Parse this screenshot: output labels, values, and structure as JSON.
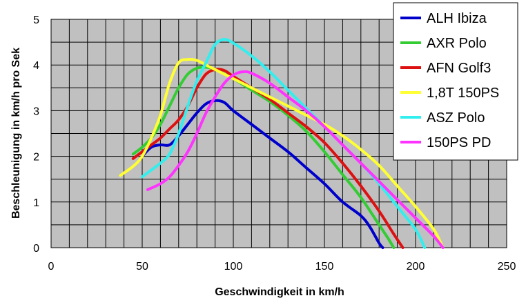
{
  "chart_data": {
    "type": "line",
    "xlabel": "Geschwindigkeit in km/h",
    "ylabel": "Beschleunigung in km/h pro Sek",
    "xlim": [
      0,
      250
    ],
    "ylim": [
      0,
      5
    ],
    "x_ticks": [
      0,
      50,
      100,
      150,
      200,
      250
    ],
    "y_ticks": [
      0,
      1,
      2,
      3,
      4,
      5
    ],
    "grid": true,
    "plot_background": "#c0c0c0",
    "legend_position": "top-right",
    "series": [
      {
        "name": "ALH Ibiza",
        "color": "#0000cc",
        "points": [
          [
            50,
            2.0
          ],
          [
            55,
            2.2
          ],
          [
            60,
            2.25
          ],
          [
            65,
            2.25
          ],
          [
            70,
            2.45
          ],
          [
            75,
            2.7
          ],
          [
            80,
            2.95
          ],
          [
            85,
            3.15
          ],
          [
            90,
            3.22
          ],
          [
            95,
            3.18
          ],
          [
            100,
            3.0
          ],
          [
            110,
            2.7
          ],
          [
            120,
            2.4
          ],
          [
            130,
            2.1
          ],
          [
            140,
            1.75
          ],
          [
            150,
            1.4
          ],
          [
            160,
            1.0
          ],
          [
            170,
            0.7
          ],
          [
            175,
            0.45
          ],
          [
            180,
            0.1
          ],
          [
            182,
            0.0
          ]
        ]
      },
      {
        "name": "AXR Polo",
        "color": "#33cc33",
        "points": [
          [
            45,
            2.05
          ],
          [
            50,
            2.2
          ],
          [
            55,
            2.4
          ],
          [
            60,
            2.7
          ],
          [
            65,
            3.1
          ],
          [
            70,
            3.5
          ],
          [
            75,
            3.8
          ],
          [
            80,
            3.93
          ],
          [
            85,
            3.95
          ],
          [
            90,
            3.9
          ],
          [
            100,
            3.7
          ],
          [
            110,
            3.45
          ],
          [
            120,
            3.2
          ],
          [
            130,
            2.9
          ],
          [
            140,
            2.55
          ],
          [
            150,
            2.1
          ],
          [
            160,
            1.6
          ],
          [
            170,
            1.1
          ],
          [
            180,
            0.5
          ],
          [
            185,
            0.2
          ],
          [
            188,
            0.0
          ]
        ]
      },
      {
        "name": "AFN Golf3",
        "color": "#dd1111",
        "points": [
          [
            45,
            1.95
          ],
          [
            50,
            2.1
          ],
          [
            55,
            2.25
          ],
          [
            60,
            2.4
          ],
          [
            65,
            2.6
          ],
          [
            70,
            2.8
          ],
          [
            75,
            3.1
          ],
          [
            80,
            3.5
          ],
          [
            85,
            3.8
          ],
          [
            90,
            3.9
          ],
          [
            95,
            3.88
          ],
          [
            100,
            3.75
          ],
          [
            110,
            3.5
          ],
          [
            120,
            3.25
          ],
          [
            130,
            2.95
          ],
          [
            140,
            2.65
          ],
          [
            150,
            2.3
          ],
          [
            160,
            1.85
          ],
          [
            170,
            1.35
          ],
          [
            180,
            0.8
          ],
          [
            188,
            0.3
          ],
          [
            193,
            0.0
          ]
        ]
      },
      {
        "name": "1,8T 150PS",
        "color": "#ffff33",
        "points": [
          [
            38,
            1.58
          ],
          [
            45,
            1.78
          ],
          [
            50,
            2.0
          ],
          [
            55,
            2.4
          ],
          [
            60,
            2.9
          ],
          [
            65,
            3.6
          ],
          [
            70,
            4.05
          ],
          [
            75,
            4.12
          ],
          [
            80,
            4.1
          ],
          [
            85,
            4.0
          ],
          [
            90,
            3.9
          ],
          [
            100,
            3.7
          ],
          [
            110,
            3.5
          ],
          [
            120,
            3.3
          ],
          [
            130,
            3.1
          ],
          [
            140,
            2.9
          ],
          [
            150,
            2.7
          ],
          [
            160,
            2.45
          ],
          [
            170,
            2.15
          ],
          [
            180,
            1.8
          ],
          [
            190,
            1.35
          ],
          [
            200,
            0.9
          ],
          [
            210,
            0.4
          ],
          [
            215,
            0.0
          ]
        ]
      },
      {
        "name": "ASZ Polo",
        "color": "#33eeee",
        "points": [
          [
            50,
            1.55
          ],
          [
            55,
            1.7
          ],
          [
            60,
            1.85
          ],
          [
            65,
            2.05
          ],
          [
            70,
            2.5
          ],
          [
            75,
            3.1
          ],
          [
            80,
            3.65
          ],
          [
            85,
            4.05
          ],
          [
            90,
            4.45
          ],
          [
            95,
            4.56
          ],
          [
            100,
            4.48
          ],
          [
            110,
            4.2
          ],
          [
            120,
            3.85
          ],
          [
            130,
            3.45
          ],
          [
            140,
            3.05
          ],
          [
            150,
            2.65
          ],
          [
            160,
            2.25
          ],
          [
            170,
            1.85
          ],
          [
            180,
            1.4
          ],
          [
            190,
            0.9
          ],
          [
            200,
            0.4
          ],
          [
            205,
            0.0
          ]
        ]
      },
      {
        "name": "150PS PD",
        "color": "#ff33ff",
        "points": [
          [
            53,
            1.27
          ],
          [
            60,
            1.4
          ],
          [
            65,
            1.55
          ],
          [
            70,
            1.8
          ],
          [
            75,
            2.1
          ],
          [
            80,
            2.5
          ],
          [
            85,
            2.95
          ],
          [
            90,
            3.3
          ],
          [
            95,
            3.6
          ],
          [
            100,
            3.78
          ],
          [
            105,
            3.85
          ],
          [
            110,
            3.82
          ],
          [
            120,
            3.6
          ],
          [
            130,
            3.3
          ],
          [
            140,
            3.0
          ],
          [
            150,
            2.65
          ],
          [
            160,
            2.25
          ],
          [
            170,
            1.85
          ],
          [
            180,
            1.45
          ],
          [
            190,
            1.05
          ],
          [
            200,
            0.65
          ],
          [
            210,
            0.25
          ],
          [
            215,
            0.0
          ]
        ]
      }
    ]
  }
}
